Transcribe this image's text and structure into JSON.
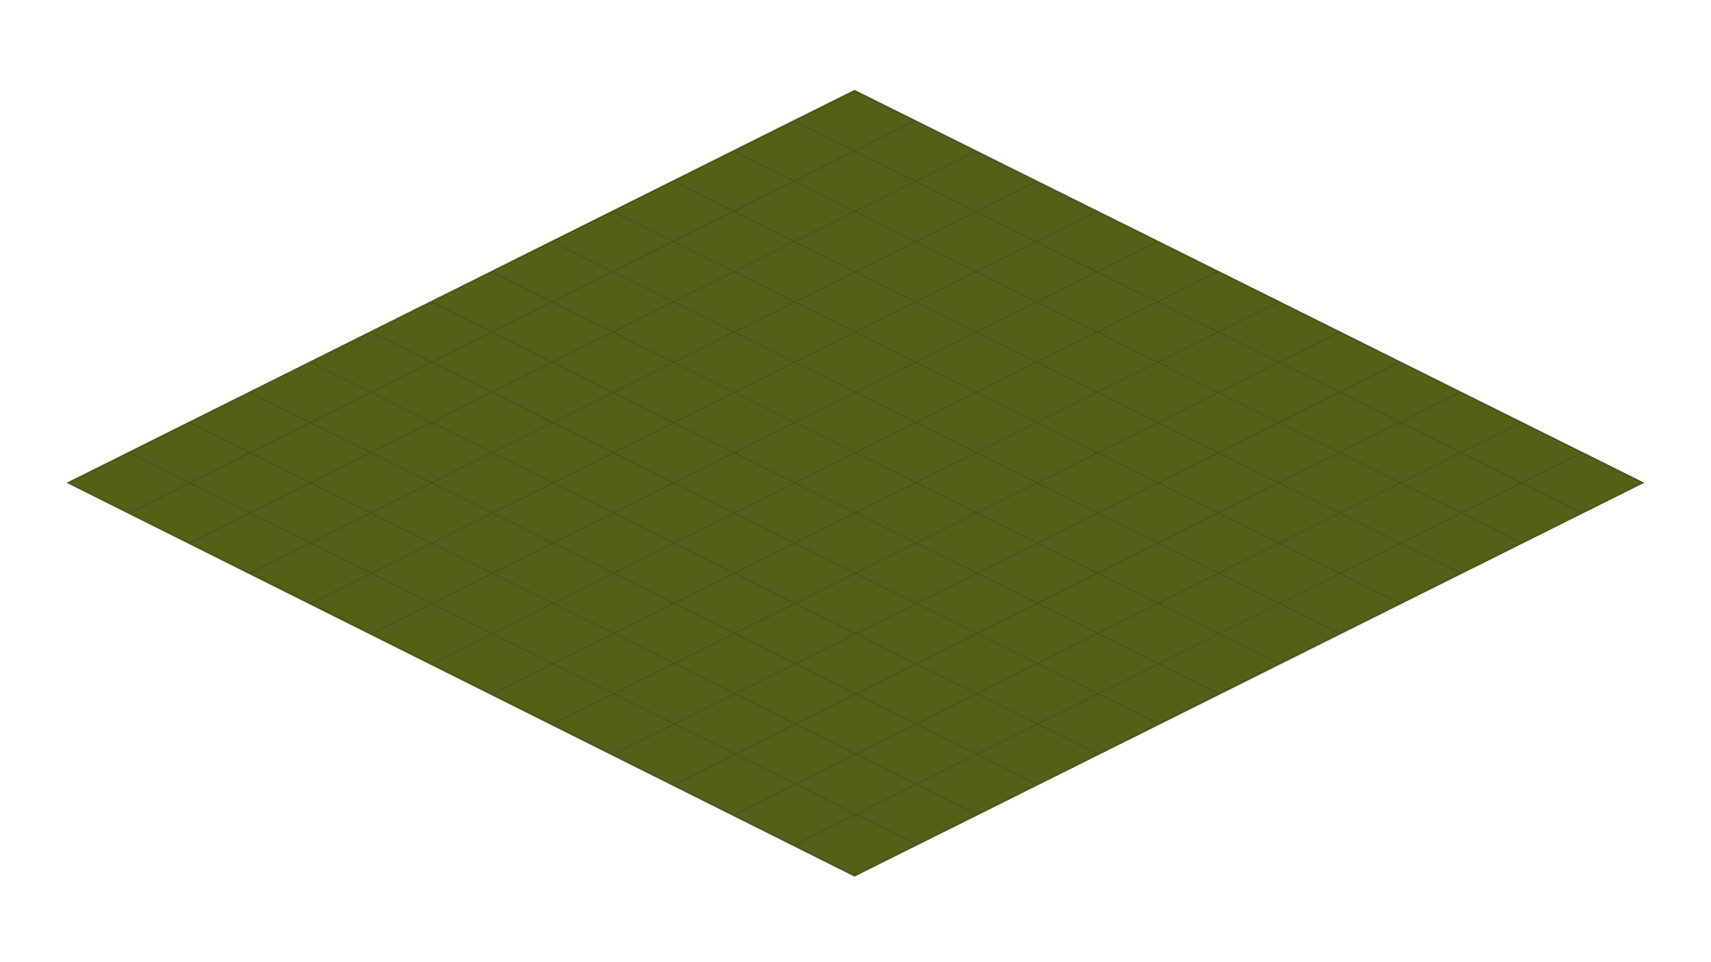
{
  "scene": {
    "view": "isometric",
    "grid": {
      "rows": 13,
      "cols": 13
    },
    "colors": {
      "background": "#ffffff",
      "ground": "#536118",
      "grid_line": "#46521a",
      "edge": "#4a5618"
    }
  }
}
